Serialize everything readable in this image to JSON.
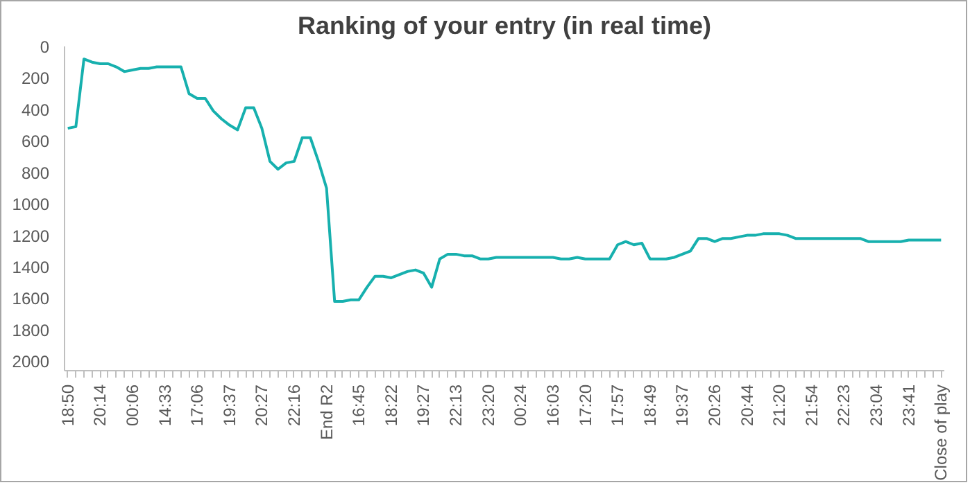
{
  "chart_data": {
    "type": "line",
    "title": "Ranking of your entry (in real time)",
    "categories": [
      "18:50",
      null,
      null,
      null,
      "20:14",
      null,
      null,
      null,
      "00:06",
      null,
      null,
      null,
      "14:33",
      null,
      null,
      null,
      "17:06",
      null,
      null,
      null,
      "19:37",
      null,
      null,
      null,
      "20:27",
      null,
      null,
      null,
      "22:16",
      null,
      null,
      null,
      "End R2",
      null,
      null,
      null,
      "16:45",
      null,
      null,
      null,
      "18:22",
      null,
      null,
      null,
      "19:27",
      null,
      null,
      null,
      "22:13",
      null,
      null,
      null,
      "23:20",
      null,
      null,
      null,
      "00:24",
      null,
      null,
      null,
      "16:03",
      null,
      null,
      null,
      "17:20",
      null,
      null,
      null,
      "17:57",
      null,
      null,
      null,
      "18:49",
      null,
      null,
      null,
      "19:37",
      null,
      null,
      null,
      "20:26",
      null,
      null,
      null,
      "20:44",
      null,
      null,
      null,
      "21:20",
      null,
      null,
      null,
      "21:54",
      null,
      null,
      null,
      "22:23",
      null,
      null,
      null,
      "23:04",
      null,
      null,
      null,
      "23:41",
      null,
      null,
      null,
      "Close of play"
    ],
    "series": [
      {
        "color": "#17b0ae",
        "values": [
          520,
          510,
          80,
          100,
          110,
          110,
          130,
          160,
          150,
          140,
          140,
          130,
          130,
          130,
          130,
          300,
          330,
          330,
          410,
          460,
          500,
          530,
          390,
          390,
          520,
          730,
          780,
          740,
          730,
          580,
          580,
          730,
          900,
          1620,
          1620,
          1610,
          1610,
          1530,
          1460,
          1460,
          1470,
          1450,
          1430,
          1420,
          1440,
          1530,
          1350,
          1320,
          1320,
          1330,
          1330,
          1350,
          1350,
          1340,
          1340,
          1340,
          1340,
          1340,
          1340,
          1340,
          1340,
          1350,
          1350,
          1340,
          1350,
          1350,
          1350,
          1350,
          1260,
          1240,
          1260,
          1250,
          1350,
          1350,
          1350,
          1340,
          1320,
          1300,
          1220,
          1220,
          1240,
          1220,
          1220,
          1210,
          1200,
          1200,
          1190,
          1190,
          1190,
          1200,
          1220,
          1220,
          1220,
          1220,
          1220,
          1220,
          1220,
          1220,
          1220,
          1240,
          1240,
          1240,
          1240,
          1240,
          1230,
          1230,
          1230,
          1230,
          1230
        ]
      }
    ],
    "ylim": [
      2060,
      0
    ],
    "yticks": [
      0,
      200,
      400,
      600,
      800,
      1000,
      1200,
      1400,
      1600,
      1800,
      2000
    ],
    "grid": false,
    "marker": "none",
    "line_style": "solid"
  }
}
